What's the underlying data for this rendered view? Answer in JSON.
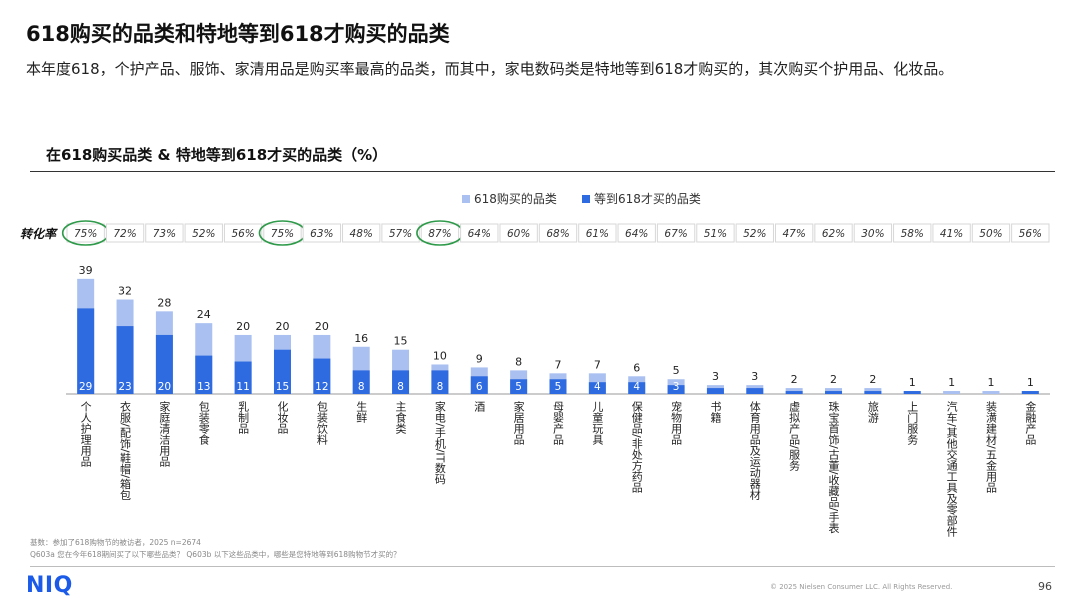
{
  "slide": {
    "title": "618购买的品类和特地等到618才购买的品类",
    "subtitle": "本年度618，个护产品、服饰、家清用品是购买率最高的品类，而其中，家电数码类是特地等到618才购买的，其次购买个护用品、化妆品。",
    "chart_title": "在618购买品类 & 特地等到618才买的品类（%）",
    "conversion_label": "转化率",
    "footnote_lines": [
      "基数：参加了618购物节的被访者，2025 n=2674",
      "Q603a 您在今年618期间买了以下哪些品类？ Q603b 以下这些品类中，哪些是您特地等到618购物节才买的？"
    ],
    "logo": "NIQ",
    "copyright": "© 2025 Nielsen Consumer LLC. All Rights Reserved.",
    "page_number": "96"
  },
  "colors": {
    "light_bar": "#a9c0f0",
    "dark_bar": "#2f6be0",
    "circle": "#2e9a4a",
    "axis": "#9a9a9a",
    "conv_border": "#d7d7d7"
  },
  "chart_data": {
    "type": "bar",
    "stacked": "overlay",
    "title": "在618购买品类 & 特地等到618才买的品类（%）",
    "legend_position": "top-right",
    "categories": [
      "个人护理用品",
      "衣服/配饰/鞋帽/箱包",
      "家庭清洁用品",
      "包装零食",
      "乳制品",
      "化妆品",
      "包装饮料",
      "生鲜",
      "主食类",
      "家电/手机/IT数码",
      "酒",
      "家居用品",
      "母婴产品",
      "儿童玩具",
      "保健品/非处方药品",
      "宠物用品",
      "书籍",
      "体育用品及运动器材",
      "虚拟产品/服务",
      "珠宝首饰/古董/收藏品/手表",
      "旅游",
      "上门服务",
      "汽车/其他交通工具及零部件",
      "装潢建材/五金用品",
      "金融产品"
    ],
    "series": [
      {
        "name": "618购买的品类",
        "values": [
          39,
          32,
          28,
          24,
          20,
          20,
          20,
          16,
          15,
          10,
          9,
          8,
          7,
          7,
          6,
          5,
          3,
          3,
          2,
          2,
          2,
          1,
          1,
          1,
          1
        ]
      },
      {
        "name": "等到618才买的品类",
        "values": [
          29,
          23,
          20,
          13,
          11,
          15,
          12,
          8,
          8,
          8,
          6,
          5,
          5,
          4,
          4,
          3,
          2,
          2,
          1,
          1,
          1,
          1,
          0,
          0,
          1
        ]
      }
    ],
    "conversion_rates": [
      "75%",
      "72%",
      "73%",
      "52%",
      "56%",
      "75%",
      "63%",
      "48%",
      "57%",
      "87%",
      "64%",
      "60%",
      "68%",
      "61%",
      "64%",
      "67%",
      "51%",
      "52%",
      "47%",
      "62%",
      "30%",
      "58%",
      "41%",
      "50%",
      "56%"
    ],
    "highlighted_indices": [
      0,
      5,
      9
    ],
    "ylim": [
      0,
      42
    ],
    "grid": false
  }
}
